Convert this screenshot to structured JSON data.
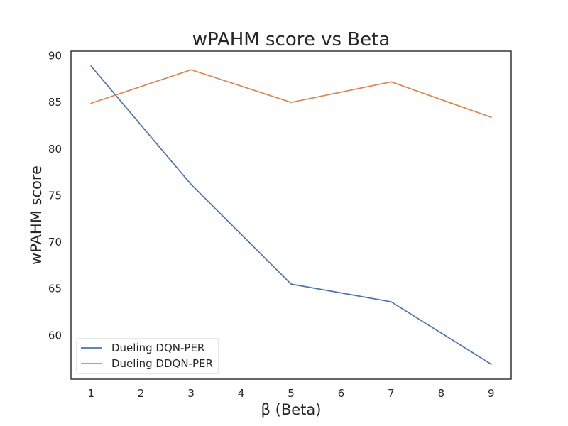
{
  "chart_data": {
    "type": "line",
    "title": "wPAHM score vs Beta",
    "xlabel": "β (Beta)",
    "ylabel": "wPAHM score",
    "x": [
      1,
      3,
      5,
      7,
      9
    ],
    "xlim": [
      0.6,
      9.4
    ],
    "ylim": [
      55.3,
      90.5
    ],
    "xticks": [
      1,
      2,
      3,
      4,
      5,
      6,
      7,
      8,
      9
    ],
    "yticks": [
      60,
      65,
      70,
      75,
      80,
      85,
      90
    ],
    "grid": false,
    "legend_position": "lower-left",
    "series": [
      {
        "name": "Dueling DQN-PER",
        "color": "#4c72b0",
        "values": [
          88.9,
          76.2,
          65.5,
          63.6,
          56.9
        ]
      },
      {
        "name": "Dueling DDQN-PER",
        "color": "#dd8452",
        "values": [
          84.9,
          88.5,
          85.0,
          87.2,
          83.4
        ]
      }
    ]
  }
}
